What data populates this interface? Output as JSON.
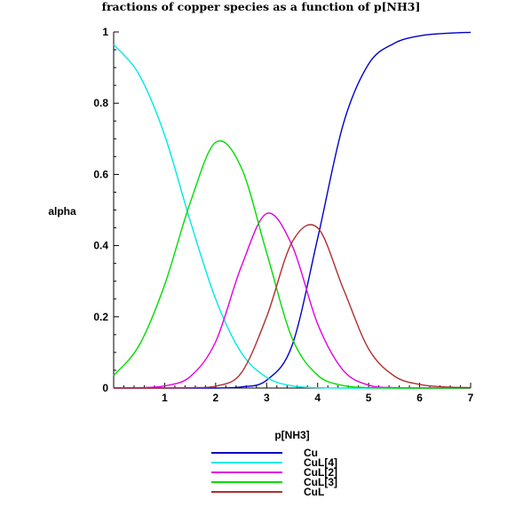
{
  "chart_data": {
    "type": "line",
    "title": "fractions of copper species as a function of p[NH3]",
    "xlabel": "p[NH3]",
    "ylabel": "alpha",
    "xlim": [
      0,
      7
    ],
    "ylim": [
      0,
      1
    ],
    "x_ticks": [
      {
        "value": 1,
        "label": "1"
      },
      {
        "value": 2,
        "label": "2"
      },
      {
        "value": 3,
        "label": "3"
      },
      {
        "value": 4,
        "label": "4"
      },
      {
        "value": 5,
        "label": "5"
      },
      {
        "value": 6,
        "label": "6"
      },
      {
        "value": 7,
        "label": "7"
      }
    ],
    "y_ticks": [
      {
        "value": 0,
        "label": "0"
      },
      {
        "value": 0.2,
        "label": "0.2"
      },
      {
        "value": 0.4,
        "label": "0.4"
      },
      {
        "value": 0.6,
        "label": "0.6"
      },
      {
        "value": 0.8,
        "label": "0.8"
      },
      {
        "value": 1,
        "label": "1"
      }
    ],
    "grid": false,
    "legend_position": "bottom",
    "x": [
      0,
      0.5,
      1,
      1.5,
      2,
      2.5,
      3,
      3.5,
      4,
      4.5,
      5,
      5.5,
      6,
      6.5,
      7
    ],
    "series": [
      {
        "name": "Cu",
        "color": "#0000c8",
        "values": [
          0.0,
          0.0,
          0.0,
          0.0,
          0.0,
          0.003,
          0.022,
          0.12,
          0.42,
          0.74,
          0.91,
          0.968,
          0.989,
          0.996,
          0.999
        ]
      },
      {
        "name": "CuL[4]",
        "color": "#00e8e8",
        "values": [
          0.965,
          0.88,
          0.71,
          0.47,
          0.25,
          0.1,
          0.03,
          0.006,
          0.001,
          0.0,
          0.0,
          0.0,
          0.0,
          0.0,
          0.0
        ]
      },
      {
        "name": "CuL[2]",
        "color": "#e000e0",
        "values": [
          0.0,
          0.001,
          0.006,
          0.032,
          0.13,
          0.34,
          0.49,
          0.4,
          0.18,
          0.05,
          0.008,
          0.001,
          0.0,
          0.0,
          0.0
        ]
      },
      {
        "name": "CuL[3]",
        "color": "#00dc00",
        "values": [
          0.035,
          0.12,
          0.29,
          0.52,
          0.69,
          0.62,
          0.38,
          0.14,
          0.036,
          0.007,
          0.001,
          0.0,
          0.0,
          0.0,
          0.0
        ]
      },
      {
        "name": "CuL",
        "color": "#b03030",
        "values": [
          0.0,
          0.0,
          0.0,
          0.001,
          0.005,
          0.042,
          0.2,
          0.41,
          0.45,
          0.28,
          0.11,
          0.034,
          0.01,
          0.003,
          0.001
        ]
      }
    ]
  }
}
